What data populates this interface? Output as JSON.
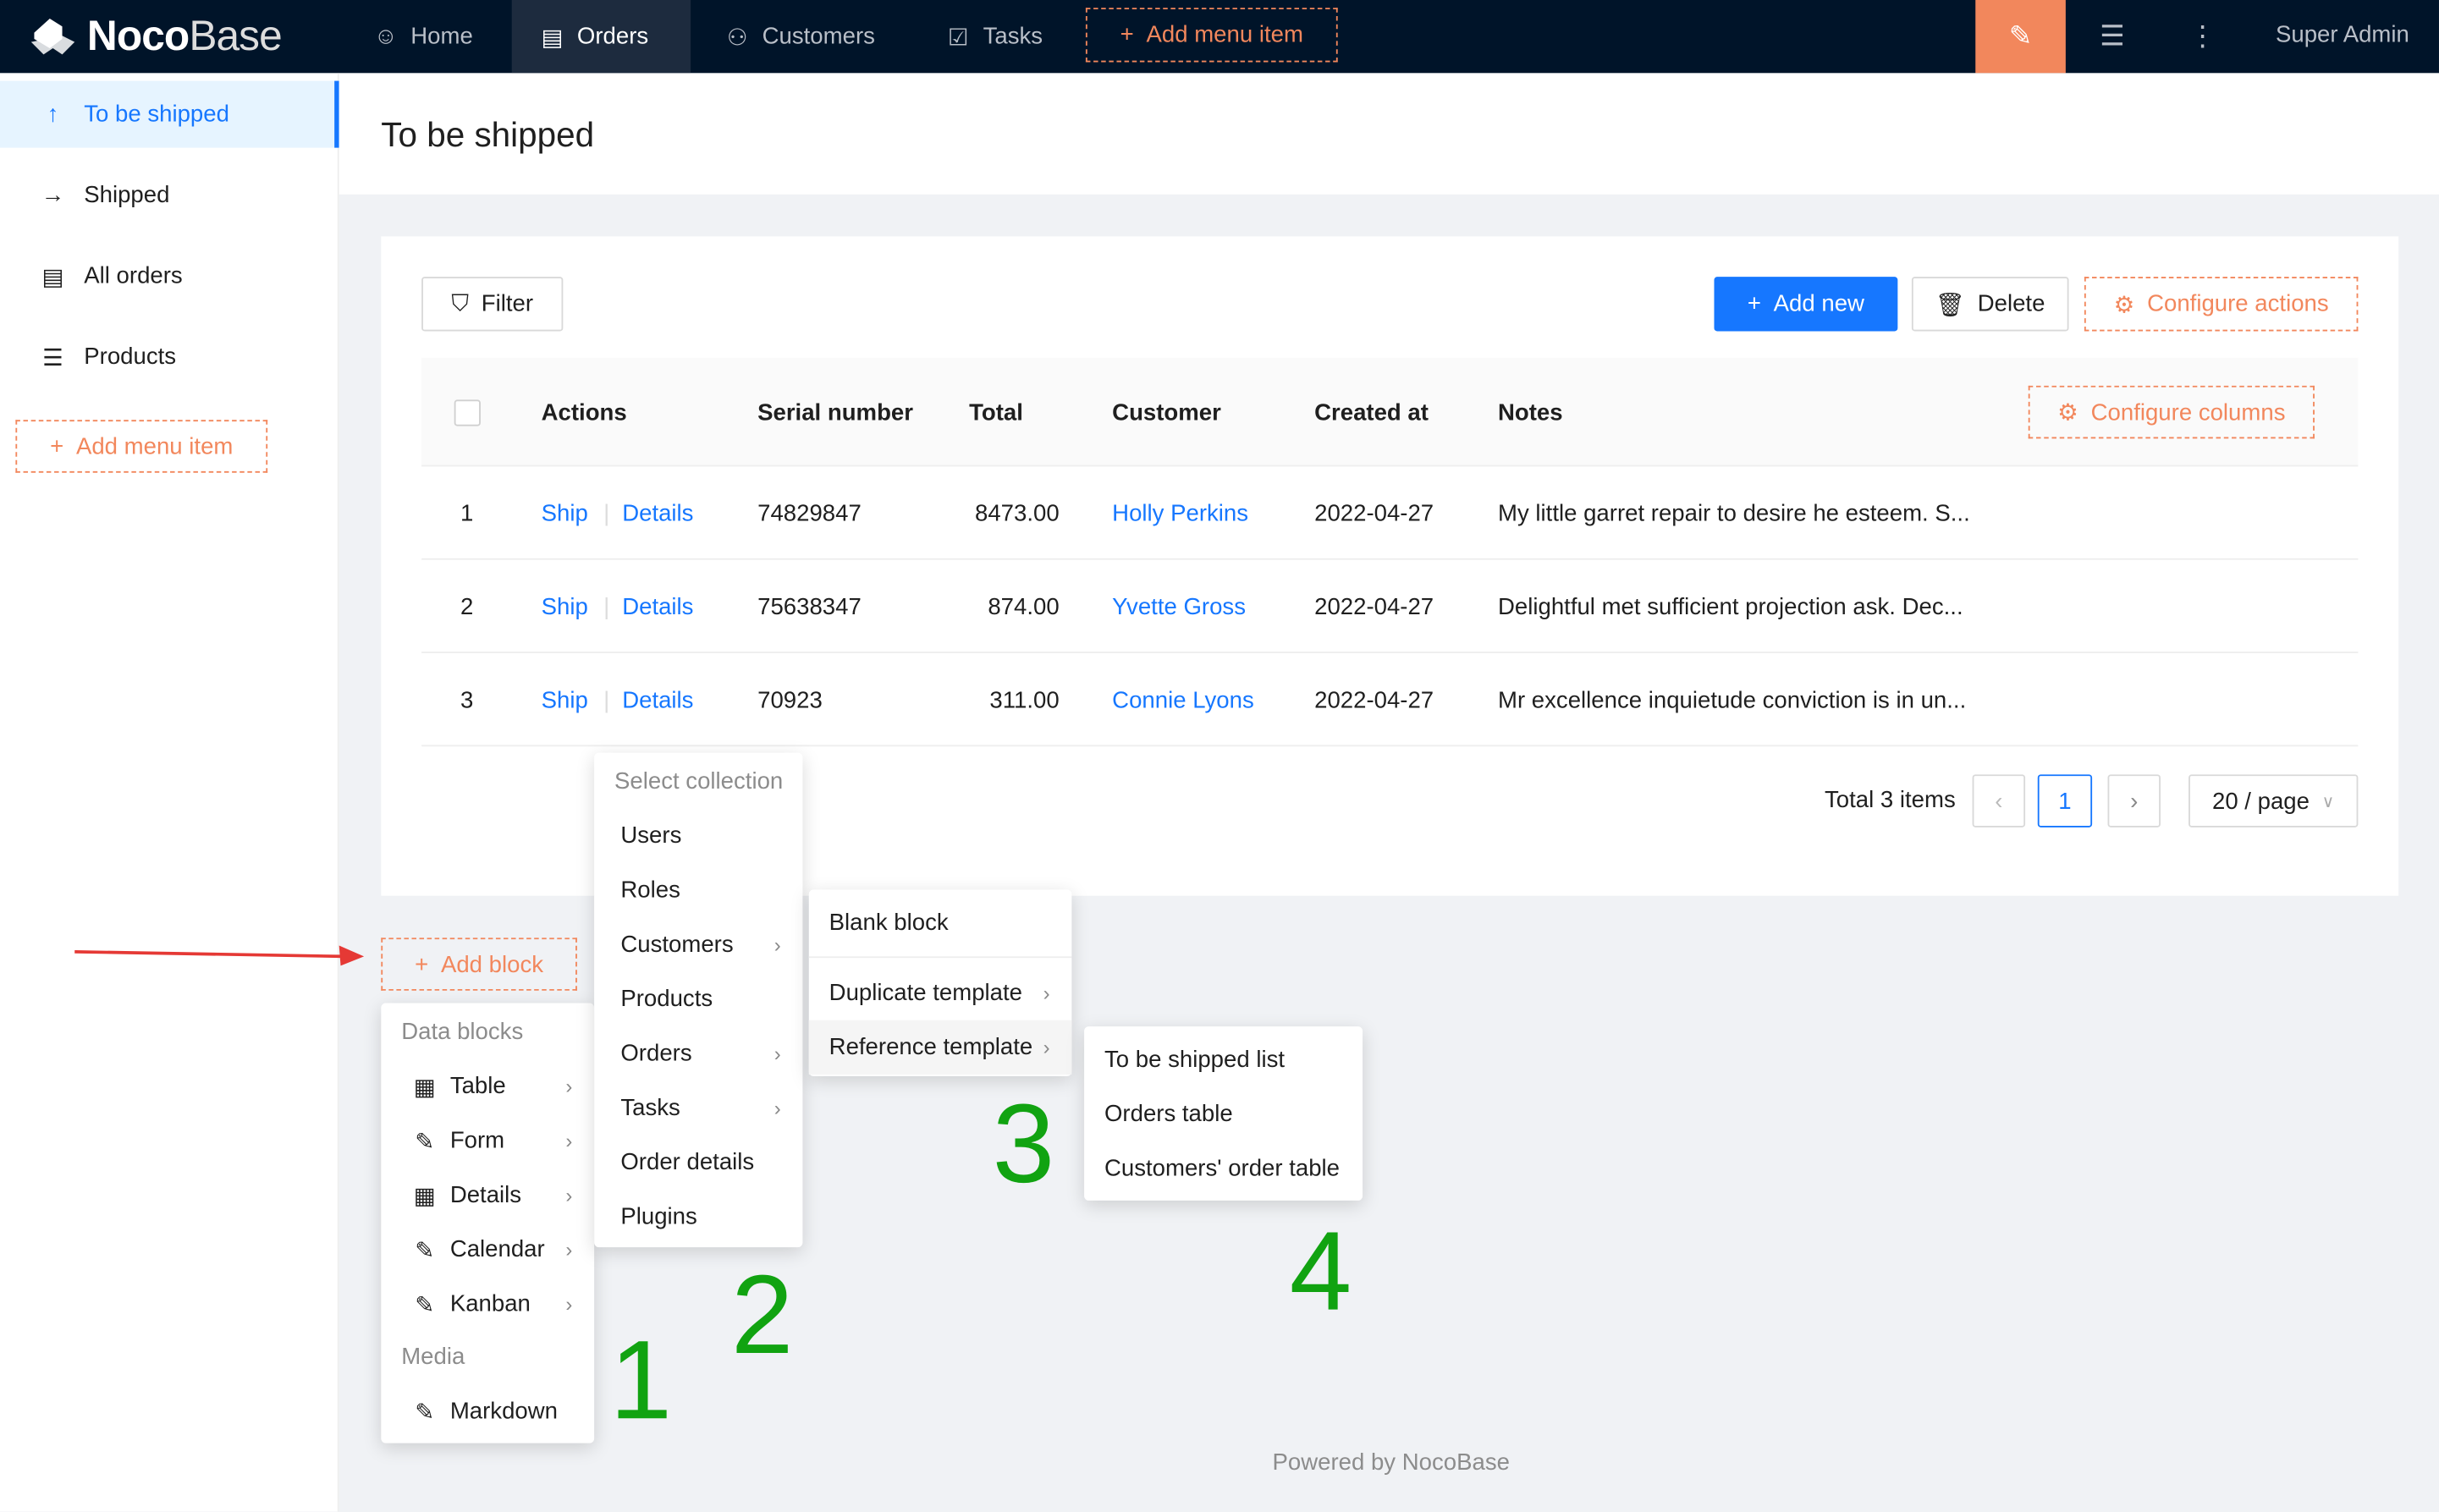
{
  "header": {
    "logo": "NocoBase",
    "nav": [
      {
        "label": "Home",
        "icon": "smile-icon"
      },
      {
        "label": "Orders",
        "icon": "file-icon",
        "active": true
      },
      {
        "label": "Customers",
        "icon": "users-icon"
      },
      {
        "label": "Tasks",
        "icon": "checkbox-icon"
      }
    ],
    "add_menu_item": "Add menu item",
    "user": "Super Admin",
    "accent": "#f2875c"
  },
  "sidebar": {
    "items": [
      {
        "label": "To be shipped",
        "icon": "arrow-up-icon",
        "selected": true
      },
      {
        "label": "Shipped",
        "icon": "arrow-right-icon"
      },
      {
        "label": "All orders",
        "icon": "file-icon"
      },
      {
        "label": "Products",
        "icon": "list-icon"
      }
    ],
    "add_menu_item": "Add menu item"
  },
  "page": {
    "title": "To be shipped"
  },
  "toolbar": {
    "filter": "Filter",
    "add_new": "Add new",
    "delete": "Delete",
    "configure_actions": "Configure actions"
  },
  "table": {
    "columns": [
      "Actions",
      "Serial number",
      "Total",
      "Customer",
      "Created at",
      "Notes"
    ],
    "configure_columns": "Configure columns",
    "rows": [
      {
        "index": "1",
        "ship": "Ship",
        "details": "Details",
        "serial": "74829847",
        "total": "8473.00",
        "customer": "Holly Perkins",
        "created": "2022-04-27",
        "notes": "My little garret repair to desire he esteem. S..."
      },
      {
        "index": "2",
        "ship": "Ship",
        "details": "Details",
        "serial": "75638347",
        "total": "874.00",
        "customer": "Yvette Gross",
        "created": "2022-04-27",
        "notes": "Delightful met sufficient projection ask. Dec..."
      },
      {
        "index": "3",
        "ship": "Ship",
        "details": "Details",
        "serial": "70923",
        "total": "311.00",
        "customer": "Connie Lyons",
        "created": "2022-04-27",
        "notes": "Mr excellence inquietude conviction is in un..."
      }
    ]
  },
  "pagination": {
    "total": "Total 3 items",
    "page": "1",
    "page_size": "20 / page"
  },
  "add_block": "Add block",
  "menu1": {
    "groups": [
      "Data blocks",
      "Media"
    ],
    "items": [
      "Table",
      "Form",
      "Details",
      "Calendar",
      "Kanban"
    ],
    "media_items": [
      "Markdown"
    ]
  },
  "menu2": {
    "title": "Select collection",
    "items": [
      "Users",
      "Roles",
      "Customers",
      "Products",
      "Orders",
      "Tasks",
      "Order details",
      "Plugins"
    ]
  },
  "menu3": {
    "items": [
      "Blank block",
      "Duplicate template",
      "Reference template"
    ]
  },
  "menu4": {
    "items": [
      "To be shipped list",
      "Orders table",
      "Customers' order table"
    ]
  },
  "annotations": [
    "1",
    "2",
    "3",
    "4"
  ],
  "footer": "Powered by NocoBase"
}
